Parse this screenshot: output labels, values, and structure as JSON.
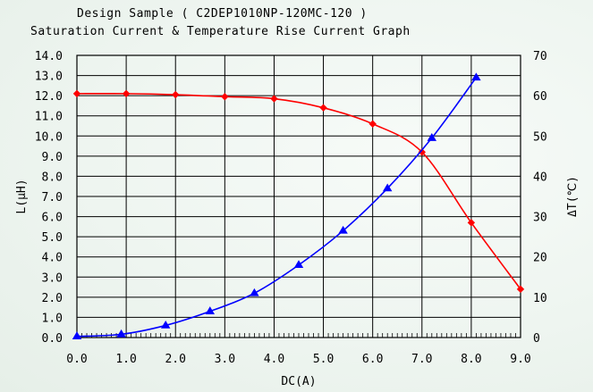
{
  "header": {
    "title": "Design Sample ( C2DEP1010NP-120MC-120 )",
    "subtitle": "Saturation Current & Temperature Rise Current Graph"
  },
  "chart_data": {
    "type": "line",
    "title": "Design Sample ( C2DEP1010NP-120MC-120 )",
    "subtitle": "Saturation Current & Temperature Rise Current Graph",
    "xlabel": "DC(A)",
    "ylabel_left": "L(μH)",
    "ylabel_right": "ΔT(℃)",
    "xlim": [
      0,
      9
    ],
    "ylim_left": [
      0,
      14
    ],
    "ylim_right": [
      0,
      70
    ],
    "x_ticks": [
      "0.0",
      "1.0",
      "2.0",
      "3.0",
      "4.0",
      "5.0",
      "6.0",
      "7.0",
      "8.0",
      "9.0"
    ],
    "y_left_ticks": [
      "0.0",
      "1.0",
      "2.0",
      "3.0",
      "4.0",
      "5.0",
      "6.0",
      "7.0",
      "8.0",
      "9.0",
      "10.0",
      "11.0",
      "12.0",
      "13.0",
      "14.0"
    ],
    "y_right_ticks": [
      "0",
      "10",
      "20",
      "30",
      "40",
      "50",
      "60",
      "70"
    ],
    "grid": true,
    "series": [
      {
        "axis": "left",
        "color": "#ff0000",
        "marker": "diamond",
        "x": [
          0.0,
          1.0,
          2.0,
          3.0,
          4.0,
          5.0,
          6.0,
          7.0,
          8.0,
          9.0
        ],
        "y": [
          12.1,
          12.1,
          12.05,
          11.95,
          11.85,
          11.4,
          10.6,
          9.2,
          5.7,
          2.4
        ]
      },
      {
        "axis": "right",
        "color": "#0000ff",
        "marker": "triangle",
        "x": [
          0.0,
          0.9,
          1.8,
          2.7,
          3.6,
          4.5,
          5.4,
          6.3,
          7.2,
          8.1
        ],
        "y": [
          0.3,
          0.8,
          3.0,
          6.5,
          11.0,
          18.0,
          26.5,
          37.0,
          49.5,
          64.5
        ]
      }
    ]
  }
}
